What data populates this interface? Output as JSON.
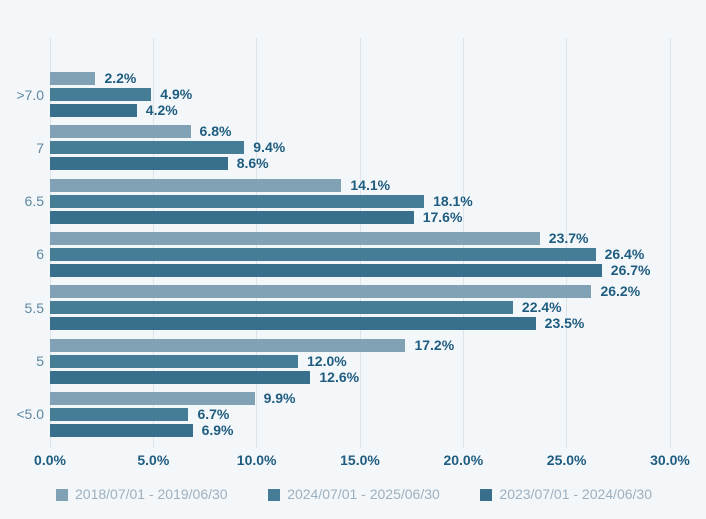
{
  "chart_data": {
    "type": "bar",
    "orientation": "horizontal",
    "title": "",
    "xlabel": "",
    "ylabel": "",
    "xlim": [
      0,
      30
    ],
    "grid": true,
    "legend_position": "bottom",
    "categories": [
      ">7.0",
      "7",
      "6.5",
      "6",
      "5.5",
      "5",
      "<5.0"
    ],
    "x_ticks": [
      "0.0%",
      "5.0%",
      "10.0%",
      "15.0%",
      "20.0%",
      "25.0%",
      "30.0%"
    ],
    "series": [
      {
        "name": "2018/07/01 - 2019/06/30",
        "color": "#81A1B5",
        "values": [
          2.2,
          6.8,
          14.1,
          23.7,
          26.2,
          17.2,
          9.9
        ],
        "labels": [
          "2.2%",
          "6.8%",
          "14.1%",
          "23.7%",
          "26.2%",
          "17.2%",
          "9.9%"
        ]
      },
      {
        "name": "2024/07/01 - 2025/06/30",
        "color": "#457C96",
        "values": [
          4.9,
          9.4,
          18.1,
          26.4,
          22.4,
          12.0,
          6.7
        ],
        "labels": [
          "4.9%",
          "9.4%",
          "18.1%",
          "26.4%",
          "22.4%",
          "12.0%",
          "6.7%"
        ]
      },
      {
        "name": "2023/07/01 - 2024/06/30",
        "color": "#386F8D",
        "values": [
          4.2,
          8.6,
          17.6,
          26.7,
          23.5,
          12.6,
          6.9
        ],
        "labels": [
          "4.2%",
          "8.6%",
          "17.6%",
          "26.7%",
          "23.5%",
          "12.6%",
          "6.9%"
        ]
      }
    ]
  },
  "colors": {
    "background": "#F4F7F9",
    "gridline": "#DCE3EB",
    "value_label": "#1E5C80",
    "tick_label": "#1E5C80",
    "category_label": "#5E87A2",
    "legend_label": "#9CB0C0"
  }
}
